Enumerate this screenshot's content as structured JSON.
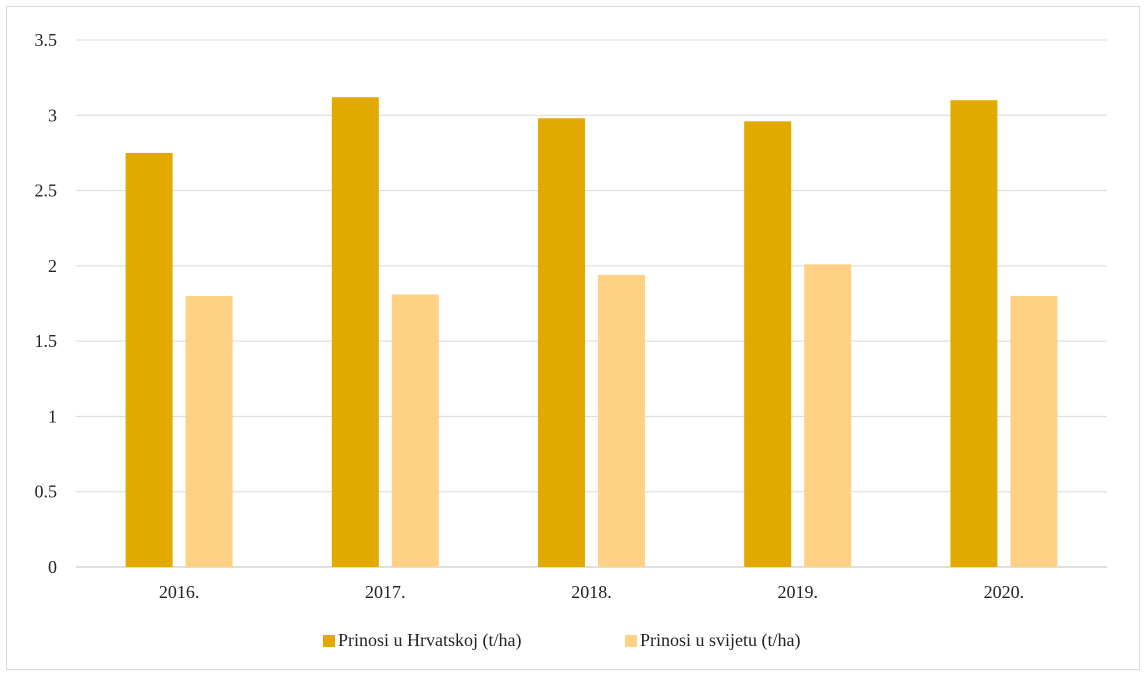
{
  "colors": {
    "series1": "#E2AA00",
    "series2": "#FFD185",
    "grid": "#d9d9d9",
    "axis": "#bfbfbf"
  },
  "chart_data": {
    "type": "bar",
    "categories": [
      "2016.",
      "2017.",
      "2018.",
      "2019.",
      "2020."
    ],
    "series": [
      {
        "name": "Prinosi u Hrvatskoj (t/ha)",
        "values": [
          2.75,
          3.12,
          2.98,
          2.96,
          3.1
        ]
      },
      {
        "name": "Prinosi u svijetu (t/ha)",
        "values": [
          1.8,
          1.81,
          1.94,
          2.01,
          1.8
        ]
      }
    ],
    "ylim": [
      0,
      3.5
    ],
    "yticks": [
      "0",
      "0.5",
      "1",
      "1.5",
      "2",
      "2.5",
      "3",
      "3.5"
    ],
    "grid": true,
    "legend_position": "bottom",
    "title": "",
    "xlabel": "",
    "ylabel": ""
  }
}
